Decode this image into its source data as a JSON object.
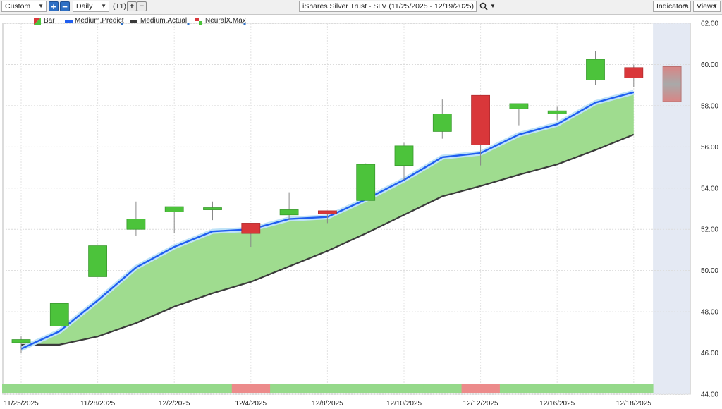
{
  "toolbar": {
    "preset": "Custom",
    "interval": "Daily",
    "offset": "(+1)",
    "title": "iShares Silver Trust - SLV (11/25/2025 - 12/19/2025)",
    "indicators_label": "Indicators",
    "views_label": "Views"
  },
  "legend": [
    "Bar",
    "Medium.Predict",
    "Medium.Actual",
    "NeuralX.Max"
  ],
  "colors": {
    "up": "#4cc33b",
    "down": "#d9373a",
    "predict": "#1f5ef0",
    "actual": "#3a3a3a",
    "fill": "#9fdc8f",
    "forecast_zone": "#e4e9f3",
    "strip_green": "#95d98a",
    "strip_red": "#ec8b8b"
  },
  "chart_data": {
    "type": "candlestick",
    "title": "iShares Silver Trust - SLV (11/25/2025 - 12/19/2025)",
    "ylim": [
      44,
      62
    ],
    "y_ticks": [
      "44.00",
      "46.00",
      "48.00",
      "50.00",
      "52.00",
      "54.00",
      "56.00",
      "58.00",
      "60.00",
      "62.00"
    ],
    "x_labels": [
      "11/25/2025",
      "11/28/2025",
      "12/2/2025",
      "12/4/2025",
      "12/8/2025",
      "12/10/2025",
      "12/12/2025",
      "12/16/2025",
      "12/18/2025"
    ],
    "x_label_bars": [
      0,
      2,
      4,
      6,
      8,
      10,
      12,
      14,
      16
    ],
    "bars": [
      {
        "o": 46.5,
        "h": 46.8,
        "l": 46.0,
        "c": 46.65
      },
      {
        "o": 47.3,
        "h": 48.4,
        "l": 47.3,
        "c": 48.4
      },
      {
        "o": 49.7,
        "h": 51.2,
        "l": 49.7,
        "c": 51.2
      },
      {
        "o": 52.0,
        "h": 53.35,
        "l": 51.7,
        "c": 52.5
      },
      {
        "o": 52.85,
        "h": 53.1,
        "l": 51.8,
        "c": 53.1
      },
      {
        "o": 52.95,
        "h": 53.35,
        "l": 52.45,
        "c": 53.05
      },
      {
        "o": 52.3,
        "h": 52.3,
        "l": 51.15,
        "c": 51.8
      },
      {
        "o": 52.7,
        "h": 53.8,
        "l": 52.45,
        "c": 52.95
      },
      {
        "o": 52.9,
        "h": 52.9,
        "l": 52.3,
        "c": 52.75
      },
      {
        "o": 53.4,
        "h": 55.2,
        "l": 53.4,
        "c": 55.15
      },
      {
        "o": 55.1,
        "h": 56.2,
        "l": 54.4,
        "c": 56.05
      },
      {
        "o": 56.75,
        "h": 58.3,
        "l": 56.4,
        "c": 57.6
      },
      {
        "o": 58.5,
        "h": 58.5,
        "l": 55.1,
        "c": 56.1
      },
      {
        "o": 57.85,
        "h": 58.1,
        "l": 57.05,
        "c": 58.1
      },
      {
        "o": 57.6,
        "h": 57.95,
        "l": 57.3,
        "c": 57.75
      },
      {
        "o": 59.25,
        "h": 60.65,
        "l": 59.0,
        "c": 60.25
      },
      {
        "o": 59.85,
        "h": 60.0,
        "l": 58.9,
        "c": 59.35
      }
    ],
    "forecast_bar": {
      "high": 59.9,
      "low": 58.2
    },
    "medium_predict": [
      46.2,
      47.05,
      48.55,
      50.15,
      51.15,
      51.9,
      52.0,
      52.5,
      52.6,
      53.45,
      54.4,
      55.5,
      55.7,
      56.6,
      57.1,
      58.15,
      58.65
    ],
    "medium_actual": [
      46.4,
      46.4,
      46.8,
      47.45,
      48.25,
      48.9,
      49.45,
      50.2,
      50.95,
      51.8,
      52.7,
      53.6,
      54.1,
      54.65,
      55.15,
      55.85,
      56.6
    ],
    "neuralx_strip": [
      "up",
      "up",
      "up",
      "up",
      "up",
      "up",
      "down",
      "up",
      "up",
      "up",
      "up",
      "up",
      "down",
      "up",
      "up",
      "up",
      "up"
    ]
  }
}
